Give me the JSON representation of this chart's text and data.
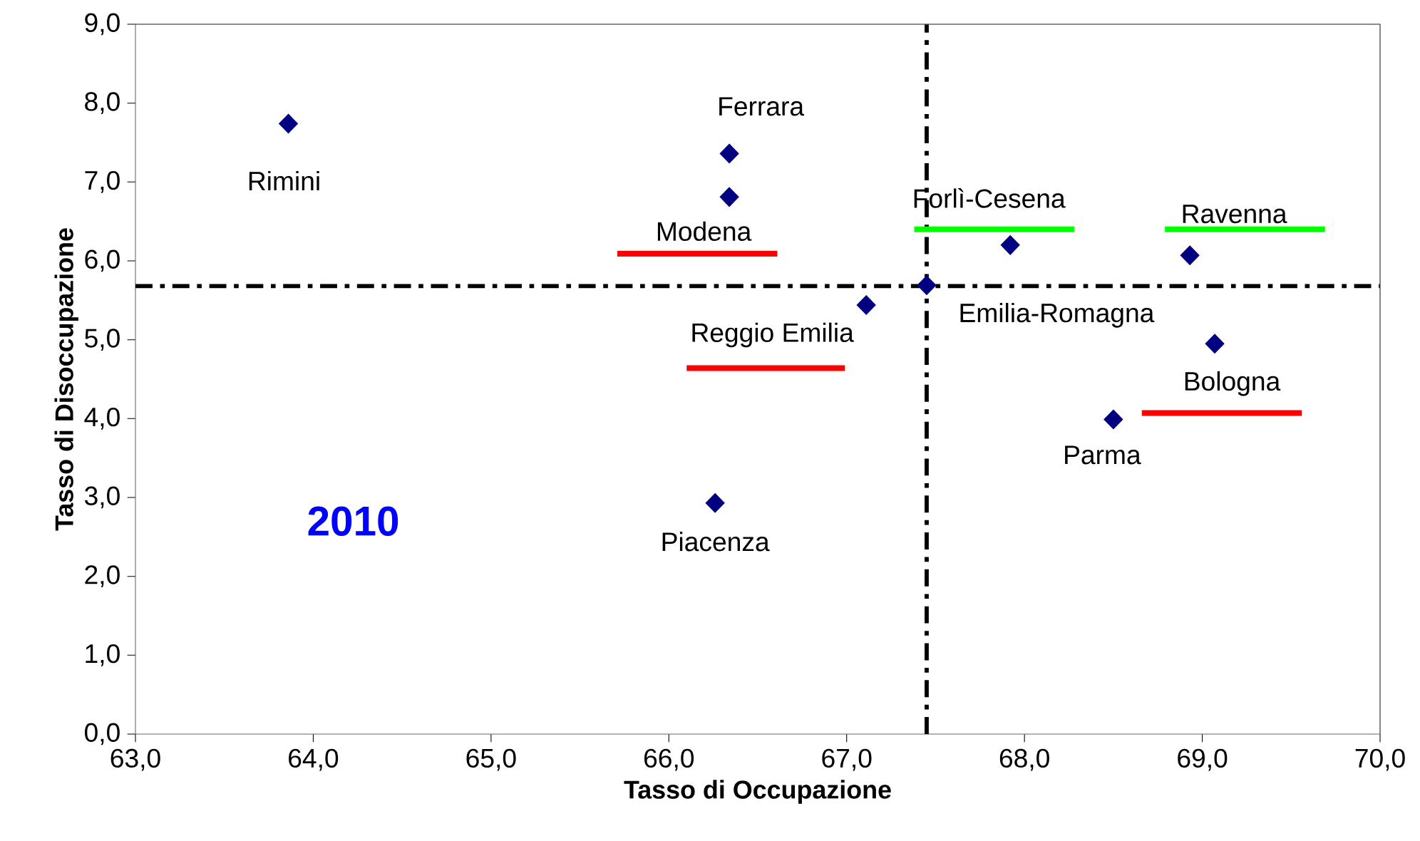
{
  "chart_data": {
    "type": "scatter",
    "xlabel": "Tasso di Occupazione",
    "ylabel": "Tasso di Disoccupazione",
    "xlim": [
      63,
      70
    ],
    "ylim": [
      0,
      9
    ],
    "xticks": [
      {
        "value": 63,
        "label": "63,0"
      },
      {
        "value": 64,
        "label": "64,0"
      },
      {
        "value": 65,
        "label": "65,0"
      },
      {
        "value": 66,
        "label": "66,0"
      },
      {
        "value": 67,
        "label": "67,0"
      },
      {
        "value": 68,
        "label": "68,0"
      },
      {
        "value": 69,
        "label": "69,0"
      },
      {
        "value": 70,
        "label": "70,0"
      }
    ],
    "yticks": [
      {
        "value": 0,
        "label": "0,0"
      },
      {
        "value": 1,
        "label": "1,0"
      },
      {
        "value": 2,
        "label": "2,0"
      },
      {
        "value": 3,
        "label": "3,0"
      },
      {
        "value": 4,
        "label": "4,0"
      },
      {
        "value": 5,
        "label": "5,0"
      },
      {
        "value": 6,
        "label": "6,0"
      },
      {
        "value": 7,
        "label": "7,0"
      },
      {
        "value": 8,
        "label": "8,0"
      },
      {
        "value": 9,
        "label": "9,0"
      }
    ],
    "grid": false,
    "series": [
      {
        "marker": "diamond",
        "color": "#000080",
        "x": [
          63.86,
          66.34,
          66.34,
          67.11,
          67.45,
          67.92,
          68.93,
          69.07,
          68.5,
          66.26
        ],
        "values": [
          7.74,
          7.36,
          6.81,
          5.44,
          5.69,
          6.2,
          6.07,
          4.95,
          3.99,
          2.93
        ]
      },
      {
        "type": "line",
        "marker": "none",
        "color": "#ff0000",
        "x": [
          65.71,
          66.61
        ],
        "values": [
          6.09,
          6.09
        ]
      },
      {
        "type": "line",
        "marker": "none",
        "color": "#ff0000",
        "x": [
          66.1,
          66.99
        ],
        "values": [
          4.64,
          4.64
        ]
      },
      {
        "type": "line",
        "marker": "none",
        "color": "#00ff00",
        "x": [
          67.38,
          68.28
        ],
        "values": [
          6.4,
          6.4
        ]
      },
      {
        "type": "line",
        "marker": "none",
        "color": "#00ff00",
        "x": [
          68.79,
          69.69
        ],
        "values": [
          6.4,
          6.4
        ]
      },
      {
        "type": "line",
        "marker": "none",
        "color": "#ff0000",
        "x": [
          68.66,
          69.56
        ],
        "values": [
          4.07,
          4.07
        ]
      }
    ],
    "ref_lines": [
      {
        "axis": "x",
        "value": 67.45,
        "color": "#000000",
        "line_style": "dashdot"
      },
      {
        "axis": "y",
        "value": 5.68,
        "color": "#000000",
        "line_style": "dashdot"
      }
    ],
    "annotations": [
      {
        "text": "Rimini",
        "x": 63.86,
        "y": 7.74
      },
      {
        "text": "Ferrara",
        "x": 66.34,
        "y": 7.36
      },
      {
        "text": "Modena",
        "x": 66.34,
        "y": 6.81
      },
      {
        "text": "Reggio Emilia",
        "x": 67.11,
        "y": 5.44
      },
      {
        "text": "Emilia-Romagna",
        "x": 67.45,
        "y": 5.69
      },
      {
        "text": "Forlì-Cesena",
        "x": 67.92,
        "y": 6.2
      },
      {
        "text": "Ravenna",
        "x": 68.93,
        "y": 6.07
      },
      {
        "text": "Bologna",
        "x": 69.07,
        "y": 4.95
      },
      {
        "text": "Parma",
        "x": 68.5,
        "y": 3.99
      },
      {
        "text": "Piacenza",
        "x": 66.26,
        "y": 2.93
      },
      "2010"
    ]
  }
}
